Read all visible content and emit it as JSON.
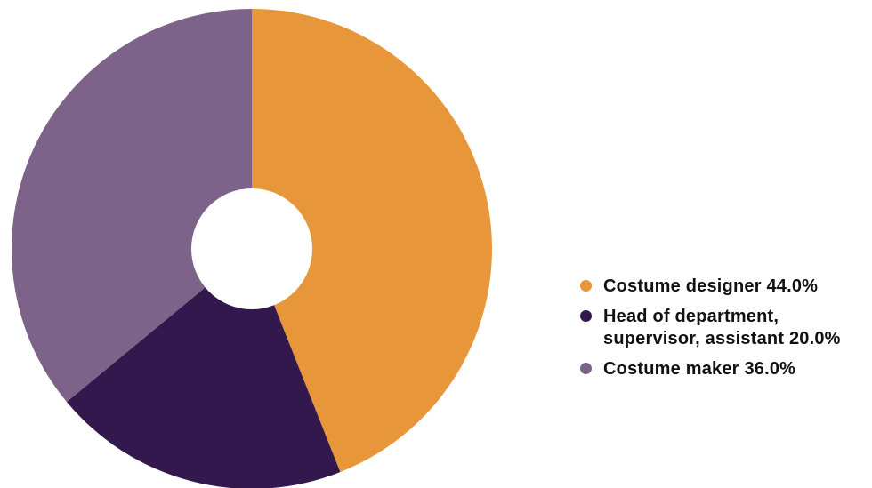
{
  "chart_data": {
    "type": "pie",
    "donut": true,
    "categories": [
      "Costume designer",
      "Head of department,\nsupervisor, assistant",
      "Costume maker"
    ],
    "values": [
      44.0,
      20.0,
      36.0
    ],
    "value_labels": [
      "44.0%",
      "20.0%",
      "36.0%"
    ],
    "colors": [
      "#e8963a",
      "#33184d",
      "#7d6389"
    ],
    "legend_position": "right",
    "start_angle": "top",
    "direction": "clockwise"
  }
}
